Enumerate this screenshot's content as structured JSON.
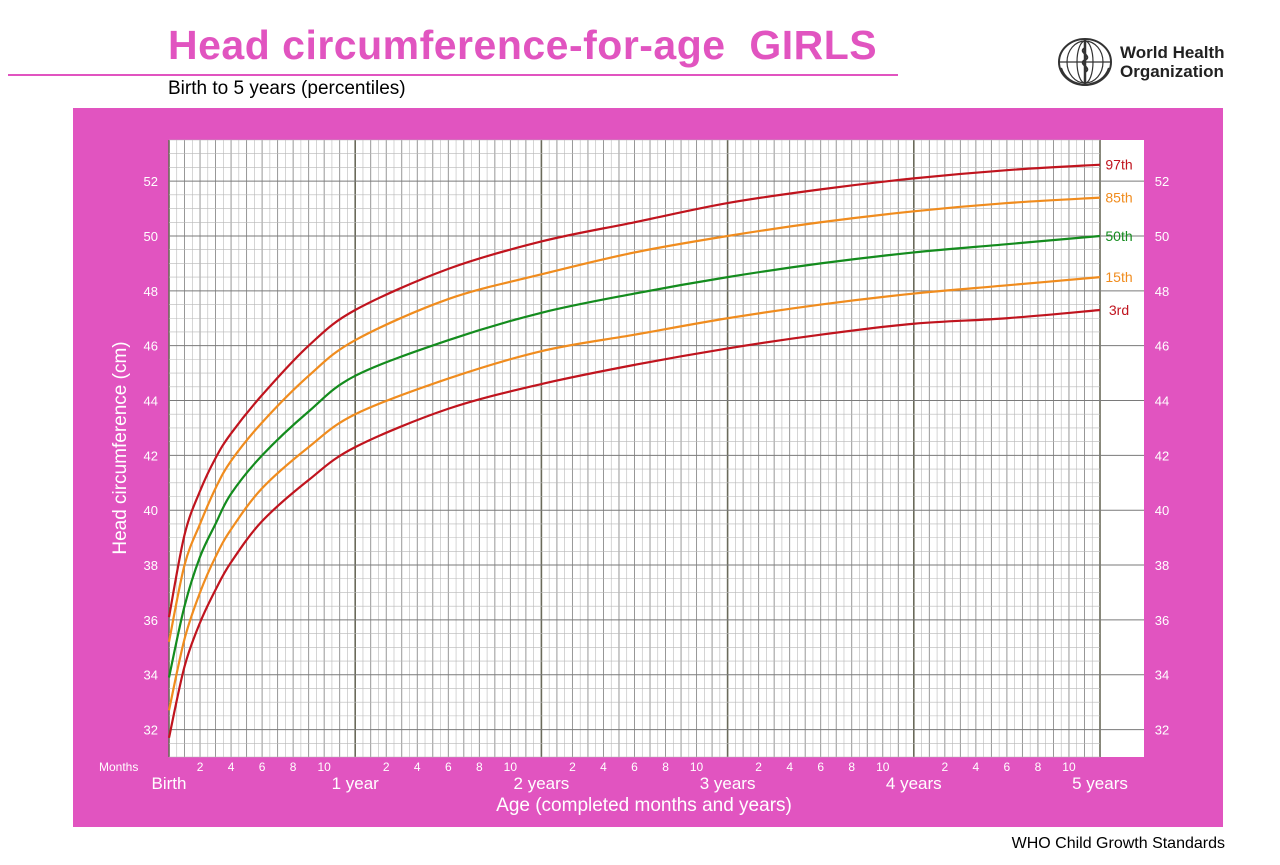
{
  "header": {
    "title": "Head circumference-for-age  GIRLS",
    "subtitle": "Birth to 5 years (percentiles)",
    "org_line1": "World Health",
    "org_line2": "Organization",
    "logo_icon": "who-emblem-icon"
  },
  "footer": {
    "text": "WHO Child Growth Standards"
  },
  "colors": {
    "brand_pink": "#e154c0",
    "red": "#c0141e",
    "orange": "#f08c1e",
    "green": "#148c1e",
    "grid": "#888888"
  },
  "chart_data": {
    "type": "line",
    "xlabel": "Age (completed months and years)",
    "ylabel": "Head circumference (cm)",
    "months_label": "Months",
    "xlim": [
      0,
      60
    ],
    "ylim": [
      31,
      53.5
    ],
    "grid": true,
    "y_ticks": [
      32,
      34,
      36,
      38,
      40,
      42,
      44,
      46,
      48,
      50,
      52
    ],
    "month_ticks": [
      "2",
      "4",
      "6",
      "8",
      "10"
    ],
    "year_labels": [
      {
        "month": 0,
        "label": "Birth"
      },
      {
        "month": 12,
        "label": "1 year"
      },
      {
        "month": 24,
        "label": "2 years"
      },
      {
        "month": 36,
        "label": "3 years"
      },
      {
        "month": 48,
        "label": "4 years"
      },
      {
        "month": 60,
        "label": "5 years"
      }
    ],
    "x": [
      0,
      1,
      2,
      3,
      4,
      6,
      9,
      12,
      18,
      24,
      30,
      36,
      42,
      48,
      54,
      60
    ],
    "series": [
      {
        "name": "97th",
        "color": "#c0141e",
        "values": [
          36.1,
          39.1,
          40.7,
          41.9,
          42.8,
          44.2,
          46.0,
          47.3,
          48.8,
          49.8,
          50.5,
          51.2,
          51.7,
          52.1,
          52.4,
          52.6
        ]
      },
      {
        "name": "85th",
        "color": "#f08c1e",
        "values": [
          35.2,
          38.0,
          39.5,
          40.8,
          41.8,
          43.2,
          44.9,
          46.2,
          47.7,
          48.6,
          49.4,
          50.0,
          50.5,
          50.9,
          51.2,
          51.4
        ]
      },
      {
        "name": "50th",
        "color": "#148c1e",
        "values": [
          33.9,
          36.5,
          38.3,
          39.5,
          40.6,
          42.0,
          43.6,
          44.9,
          46.2,
          47.2,
          47.9,
          48.5,
          49.0,
          49.4,
          49.7,
          50.0
        ]
      },
      {
        "name": "15th",
        "color": "#f08c1e",
        "values": [
          32.7,
          35.3,
          37.0,
          38.3,
          39.3,
          40.8,
          42.3,
          43.5,
          44.8,
          45.8,
          46.4,
          47.0,
          47.5,
          47.9,
          48.2,
          48.5
        ]
      },
      {
        "name": "3rd",
        "color": "#c0141e",
        "values": [
          31.7,
          34.3,
          35.9,
          37.1,
          38.1,
          39.6,
          41.1,
          42.3,
          43.7,
          44.6,
          45.3,
          45.9,
          46.4,
          46.8,
          47.0,
          47.3
        ]
      }
    ]
  }
}
